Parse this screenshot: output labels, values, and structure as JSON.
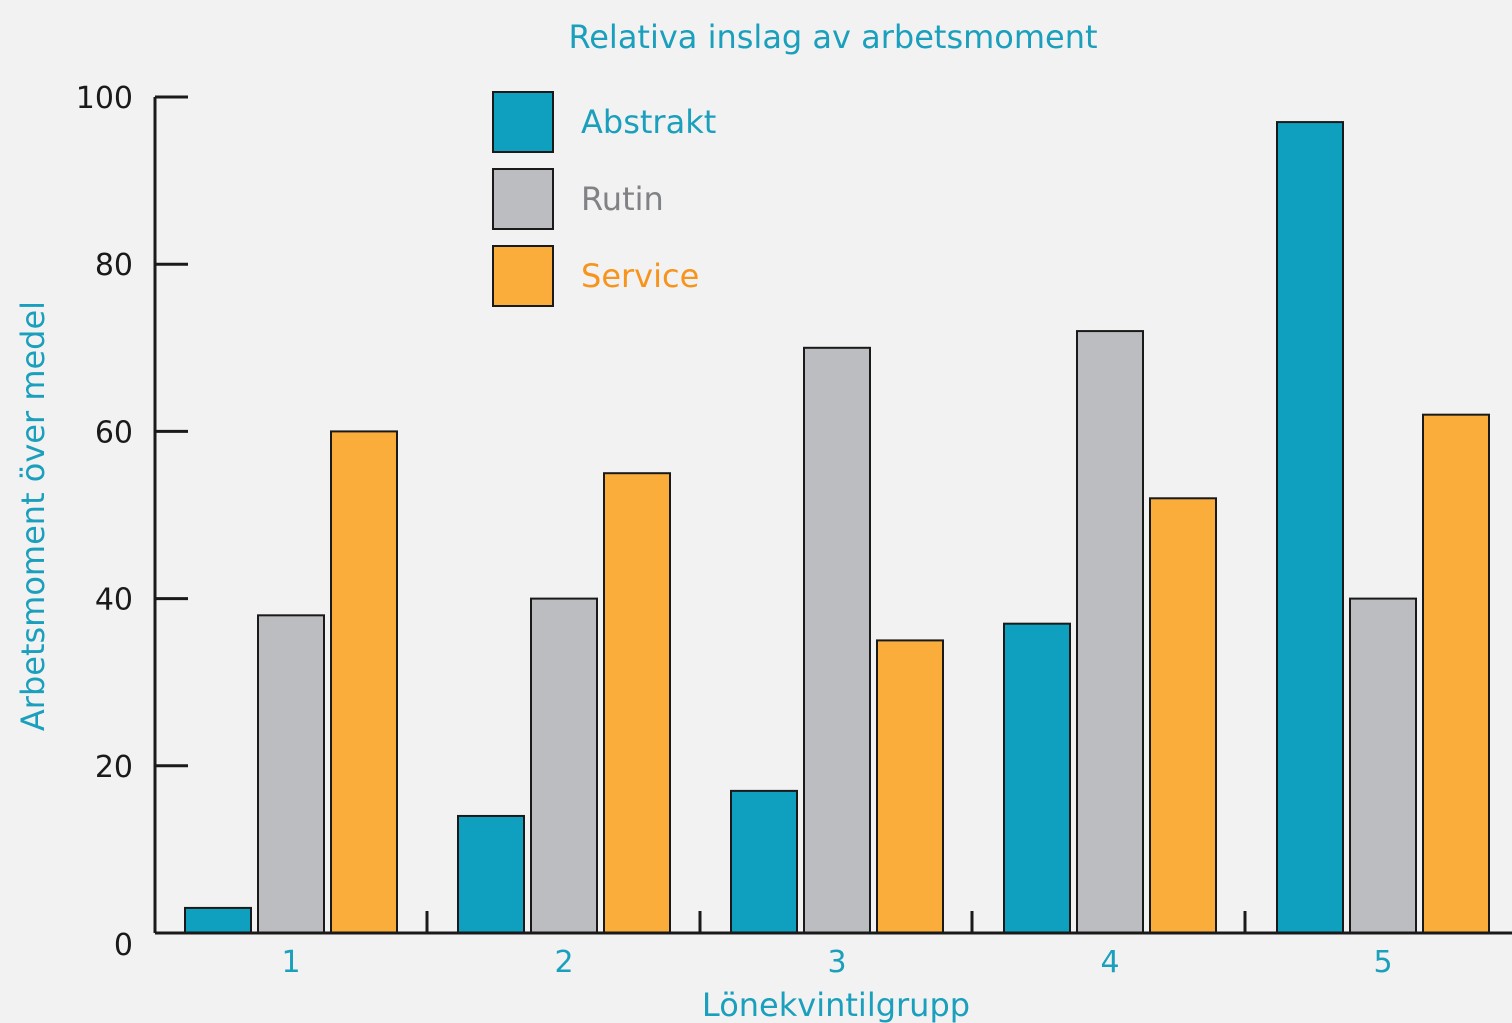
{
  "chart_data": {
    "type": "bar",
    "title": "Relativa inslag av arbetsmoment",
    "xlabel": "Lönekvintilgrupp",
    "ylabel": "Arbetsmoment över medel",
    "categories": [
      "1",
      "2",
      "3",
      "4",
      "5"
    ],
    "ylim": [
      0,
      100
    ],
    "yticks": [
      0,
      20,
      40,
      60,
      80,
      100
    ],
    "grid": false,
    "legend_position": "top-center",
    "series": [
      {
        "name": "Abstrakt",
        "color": "#0fa0c0",
        "text_color": "#1a9fbd",
        "values": [
          3,
          14,
          17,
          37,
          97
        ]
      },
      {
        "name": "Rutin",
        "color": "#bcbdc0",
        "text_color": "#808285",
        "values": [
          38,
          40,
          70,
          72,
          40
        ]
      },
      {
        "name": "Service",
        "color": "#fbad3c",
        "text_color": "#f7941d",
        "values": [
          60,
          55,
          35,
          52,
          62
        ]
      }
    ]
  }
}
